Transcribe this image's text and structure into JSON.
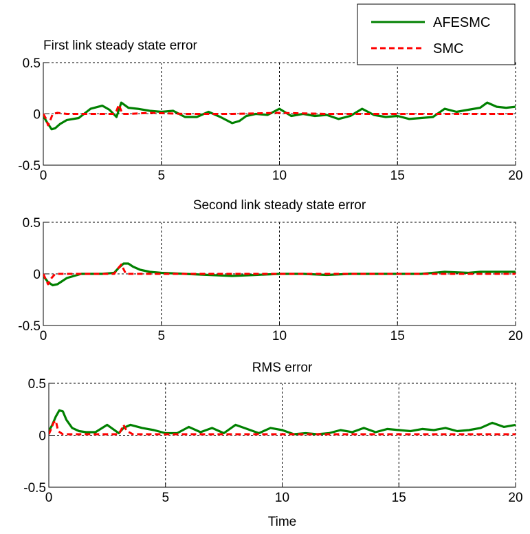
{
  "legend": {
    "placement": "top-right",
    "entries": [
      {
        "label": "AFESMC",
        "color": "#008000",
        "style": "solid"
      },
      {
        "label": "SMC",
        "color": "#ff0000",
        "style": "dashed"
      }
    ]
  },
  "chart_data": [
    {
      "type": "line",
      "title": "First link steady state error",
      "xlabel": "",
      "ylabel": "",
      "xlim": [
        0,
        20
      ],
      "ylim": [
        -0.5,
        0.5
      ],
      "xticks": [
        "0",
        "5",
        "10",
        "15",
        "20"
      ],
      "yticks": [
        "0.5",
        "0",
        "-0.5"
      ],
      "grid": true,
      "series": [
        {
          "name": "AFESMC",
          "color": "#008000",
          "style": "solid",
          "x": [
            0,
            0.15,
            0.35,
            0.5,
            0.7,
            1.0,
            1.5,
            2.0,
            2.5,
            2.8,
            3.1,
            3.3,
            3.6,
            4.0,
            4.5,
            5.0,
            5.5,
            6.0,
            6.5,
            7.0,
            7.5,
            8.0,
            8.3,
            8.6,
            9.0,
            9.5,
            10.0,
            10.5,
            11.0,
            11.5,
            12.0,
            12.5,
            13.0,
            13.5,
            14.0,
            14.5,
            15.0,
            15.5,
            16.0,
            16.5,
            17.0,
            17.5,
            18.0,
            18.5,
            18.8,
            19.2,
            19.6,
            20.0
          ],
          "y": [
            -0.02,
            -0.08,
            -0.15,
            -0.14,
            -0.1,
            -0.06,
            -0.04,
            0.05,
            0.08,
            0.04,
            -0.03,
            0.11,
            0.06,
            0.05,
            0.03,
            0.02,
            0.03,
            -0.03,
            -0.03,
            0.02,
            -0.03,
            -0.09,
            -0.07,
            -0.02,
            0.0,
            -0.01,
            0.05,
            -0.02,
            0.0,
            -0.02,
            -0.01,
            -0.05,
            -0.02,
            0.05,
            -0.01,
            -0.03,
            -0.02,
            -0.05,
            -0.04,
            -0.03,
            0.05,
            0.02,
            0.04,
            0.06,
            0.11,
            0.07,
            0.06,
            0.07
          ]
        },
        {
          "name": "SMC",
          "color": "#ff0000",
          "style": "dashed",
          "x": [
            0,
            0.1,
            0.2,
            0.3,
            0.4,
            0.6,
            1.0,
            2.0,
            3.0,
            3.1,
            3.2,
            3.35,
            3.6,
            4.5,
            6,
            8,
            10,
            12,
            14,
            16,
            18,
            20
          ],
          "y": [
            0,
            -0.04,
            -0.11,
            -0.06,
            0.0,
            0.01,
            0.0,
            0.0,
            0.0,
            0.03,
            0.09,
            0.0,
            0.0,
            0.01,
            0.0,
            0.0,
            0.01,
            0.0,
            0.0,
            0.0,
            0.0,
            0.0
          ]
        }
      ]
    },
    {
      "type": "line",
      "title": "Second link steady state error",
      "xlabel": "",
      "ylabel": "",
      "xlim": [
        0,
        20
      ],
      "ylim": [
        -0.5,
        0.5
      ],
      "xticks": [
        "0",
        "5",
        "10",
        "15",
        "20"
      ],
      "yticks": [
        "0.5",
        "0",
        "-0.5"
      ],
      "grid": true,
      "series": [
        {
          "name": "AFESMC",
          "color": "#008000",
          "style": "solid",
          "x": [
            0,
            0.2,
            0.4,
            0.6,
            0.8,
            1.0,
            1.3,
            1.6,
            2.0,
            2.5,
            3.0,
            3.2,
            3.4,
            3.6,
            3.8,
            4.1,
            4.5,
            5.0,
            6.0,
            7.0,
            8.0,
            9.0,
            10.0,
            11.0,
            12.0,
            13.0,
            14.0,
            15.0,
            16.0,
            16.5,
            17.0,
            18.0,
            18.5,
            19.0,
            20.0
          ],
          "y": [
            -0.02,
            -0.08,
            -0.11,
            -0.1,
            -0.07,
            -0.04,
            -0.02,
            0.0,
            0.0,
            0.0,
            0.01,
            0.06,
            0.1,
            0.1,
            0.07,
            0.04,
            0.02,
            0.01,
            0.0,
            -0.01,
            -0.02,
            -0.01,
            0.0,
            0.0,
            -0.01,
            0.0,
            0.0,
            0.0,
            0.0,
            0.01,
            0.02,
            0.01,
            0.02,
            0.02,
            0.02
          ]
        },
        {
          "name": "SMC",
          "color": "#ff0000",
          "style": "dashed",
          "x": [
            0,
            0.1,
            0.2,
            0.35,
            0.5,
            1.0,
            3.0,
            3.15,
            3.3,
            3.5,
            5,
            8,
            12,
            16,
            20
          ],
          "y": [
            0,
            -0.05,
            -0.1,
            -0.04,
            0.0,
            0.0,
            0.0,
            0.05,
            0.09,
            0.0,
            0.0,
            0.0,
            0.0,
            0.0,
            0.0
          ]
        }
      ]
    },
    {
      "type": "line",
      "title": "RMS error",
      "xlabel": "Time",
      "ylabel": "",
      "xlim": [
        0,
        20
      ],
      "ylim": [
        -0.5,
        0.5
      ],
      "xticks": [
        "0",
        "5",
        "10",
        "15",
        "20"
      ],
      "yticks": [
        "0.5",
        "0",
        "-0.5"
      ],
      "grid": true,
      "series": [
        {
          "name": "AFESMC",
          "color": "#008000",
          "style": "solid",
          "x": [
            0,
            0.15,
            0.3,
            0.45,
            0.6,
            0.75,
            1.0,
            1.3,
            1.6,
            2.0,
            2.5,
            3.0,
            3.2,
            3.5,
            4.0,
            4.5,
            5.0,
            5.5,
            6.0,
            6.5,
            7.0,
            7.5,
            8.0,
            8.5,
            9.0,
            9.5,
            10.0,
            10.5,
            11.0,
            11.5,
            12.0,
            12.5,
            13.0,
            13.5,
            14.0,
            14.5,
            15.0,
            15.5,
            16.0,
            16.5,
            17.0,
            17.5,
            18.0,
            18.5,
            19.0,
            19.5,
            20.0
          ],
          "y": [
            0.04,
            0.1,
            0.18,
            0.24,
            0.23,
            0.15,
            0.07,
            0.04,
            0.03,
            0.03,
            0.1,
            0.02,
            0.07,
            0.1,
            0.07,
            0.05,
            0.02,
            0.02,
            0.08,
            0.03,
            0.07,
            0.02,
            0.1,
            0.06,
            0.02,
            0.07,
            0.05,
            0.01,
            0.02,
            0.01,
            0.02,
            0.05,
            0.03,
            0.07,
            0.03,
            0.06,
            0.05,
            0.04,
            0.06,
            0.05,
            0.07,
            0.04,
            0.05,
            0.07,
            0.12,
            0.08,
            0.1
          ]
        },
        {
          "name": "SMC",
          "color": "#ff0000",
          "style": "dashed",
          "x": [
            0,
            0.1,
            0.2,
            0.3,
            0.4,
            0.6,
            3.0,
            3.1,
            3.2,
            3.35,
            3.6,
            5,
            8,
            12,
            16,
            20
          ],
          "y": [
            0.01,
            0.06,
            0.12,
            0.14,
            0.04,
            0.01,
            0.01,
            0.05,
            0.1,
            0.04,
            0.01,
            0.01,
            0.01,
            0.01,
            0.01,
            0.01
          ]
        }
      ]
    }
  ]
}
